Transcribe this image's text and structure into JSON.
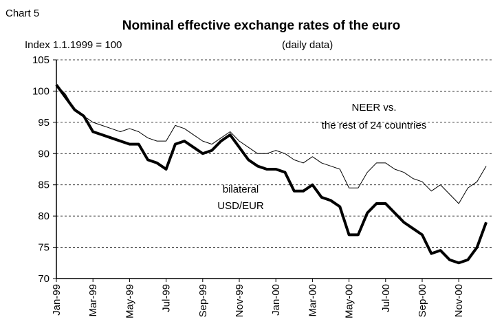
{
  "chart_data": {
    "type": "line",
    "label": "Chart 5",
    "title": "Nominal effective exchange rates of the euro",
    "subtitle": "Index 1.1.1999 = 100",
    "note": "(daily data)",
    "annotations": [
      "NEER vs.",
      "the rest of 24 countries",
      "bilateral",
      "USD/EUR"
    ],
    "categories": [
      "Jan-99",
      null,
      null,
      null,
      "Mar-99",
      null,
      null,
      null,
      "May-99",
      null,
      null,
      null,
      "Jul-99",
      null,
      null,
      null,
      "Sep-99",
      null,
      null,
      null,
      "Nov-99",
      null,
      null,
      null,
      "Jan-00",
      null,
      null,
      null,
      "Mar-00",
      null,
      null,
      null,
      "May-00",
      null,
      null,
      null,
      "Jul-00",
      null,
      null,
      null,
      "Sep-00",
      null,
      null,
      null,
      "Nov-00",
      null,
      null,
      null
    ],
    "series": [
      {
        "name": "NEER vs. the rest of 24 countries",
        "color": "#000000",
        "width": 1,
        "values": [
          101,
          99.5,
          97,
          96,
          95,
          94.5,
          94,
          93.5,
          94,
          93.5,
          92.5,
          92,
          92,
          94.5,
          94,
          93,
          92,
          91.5,
          92.5,
          93.5,
          92,
          91,
          90,
          90,
          90.5,
          90,
          89,
          88.5,
          89.5,
          88.5,
          88,
          87.5,
          84.5,
          84.5,
          87,
          88.5,
          88.5,
          87.5,
          87,
          86,
          85.5,
          84,
          85,
          83.5,
          82,
          84.5,
          85.5,
          88
        ]
      },
      {
        "name": "bilateral USD/EUR",
        "color": "#000000",
        "width": 4,
        "values": [
          101,
          99,
          97,
          96,
          93.5,
          93,
          92.5,
          92,
          91.5,
          91.5,
          89,
          88.5,
          87.5,
          91.5,
          92,
          91,
          90,
          90.5,
          92,
          93,
          91,
          89,
          88,
          87.5,
          87.5,
          87,
          84,
          84,
          85,
          83,
          82.5,
          81.5,
          77,
          77,
          80.5,
          82,
          82,
          80.5,
          79,
          78,
          77,
          74,
          74.5,
          73,
          72.5,
          73,
          75,
          79
        ]
      }
    ],
    "ylim": [
      70,
      105
    ],
    "yticks": [
      70,
      75,
      80,
      85,
      90,
      95,
      100,
      105
    ],
    "grid": true
  }
}
